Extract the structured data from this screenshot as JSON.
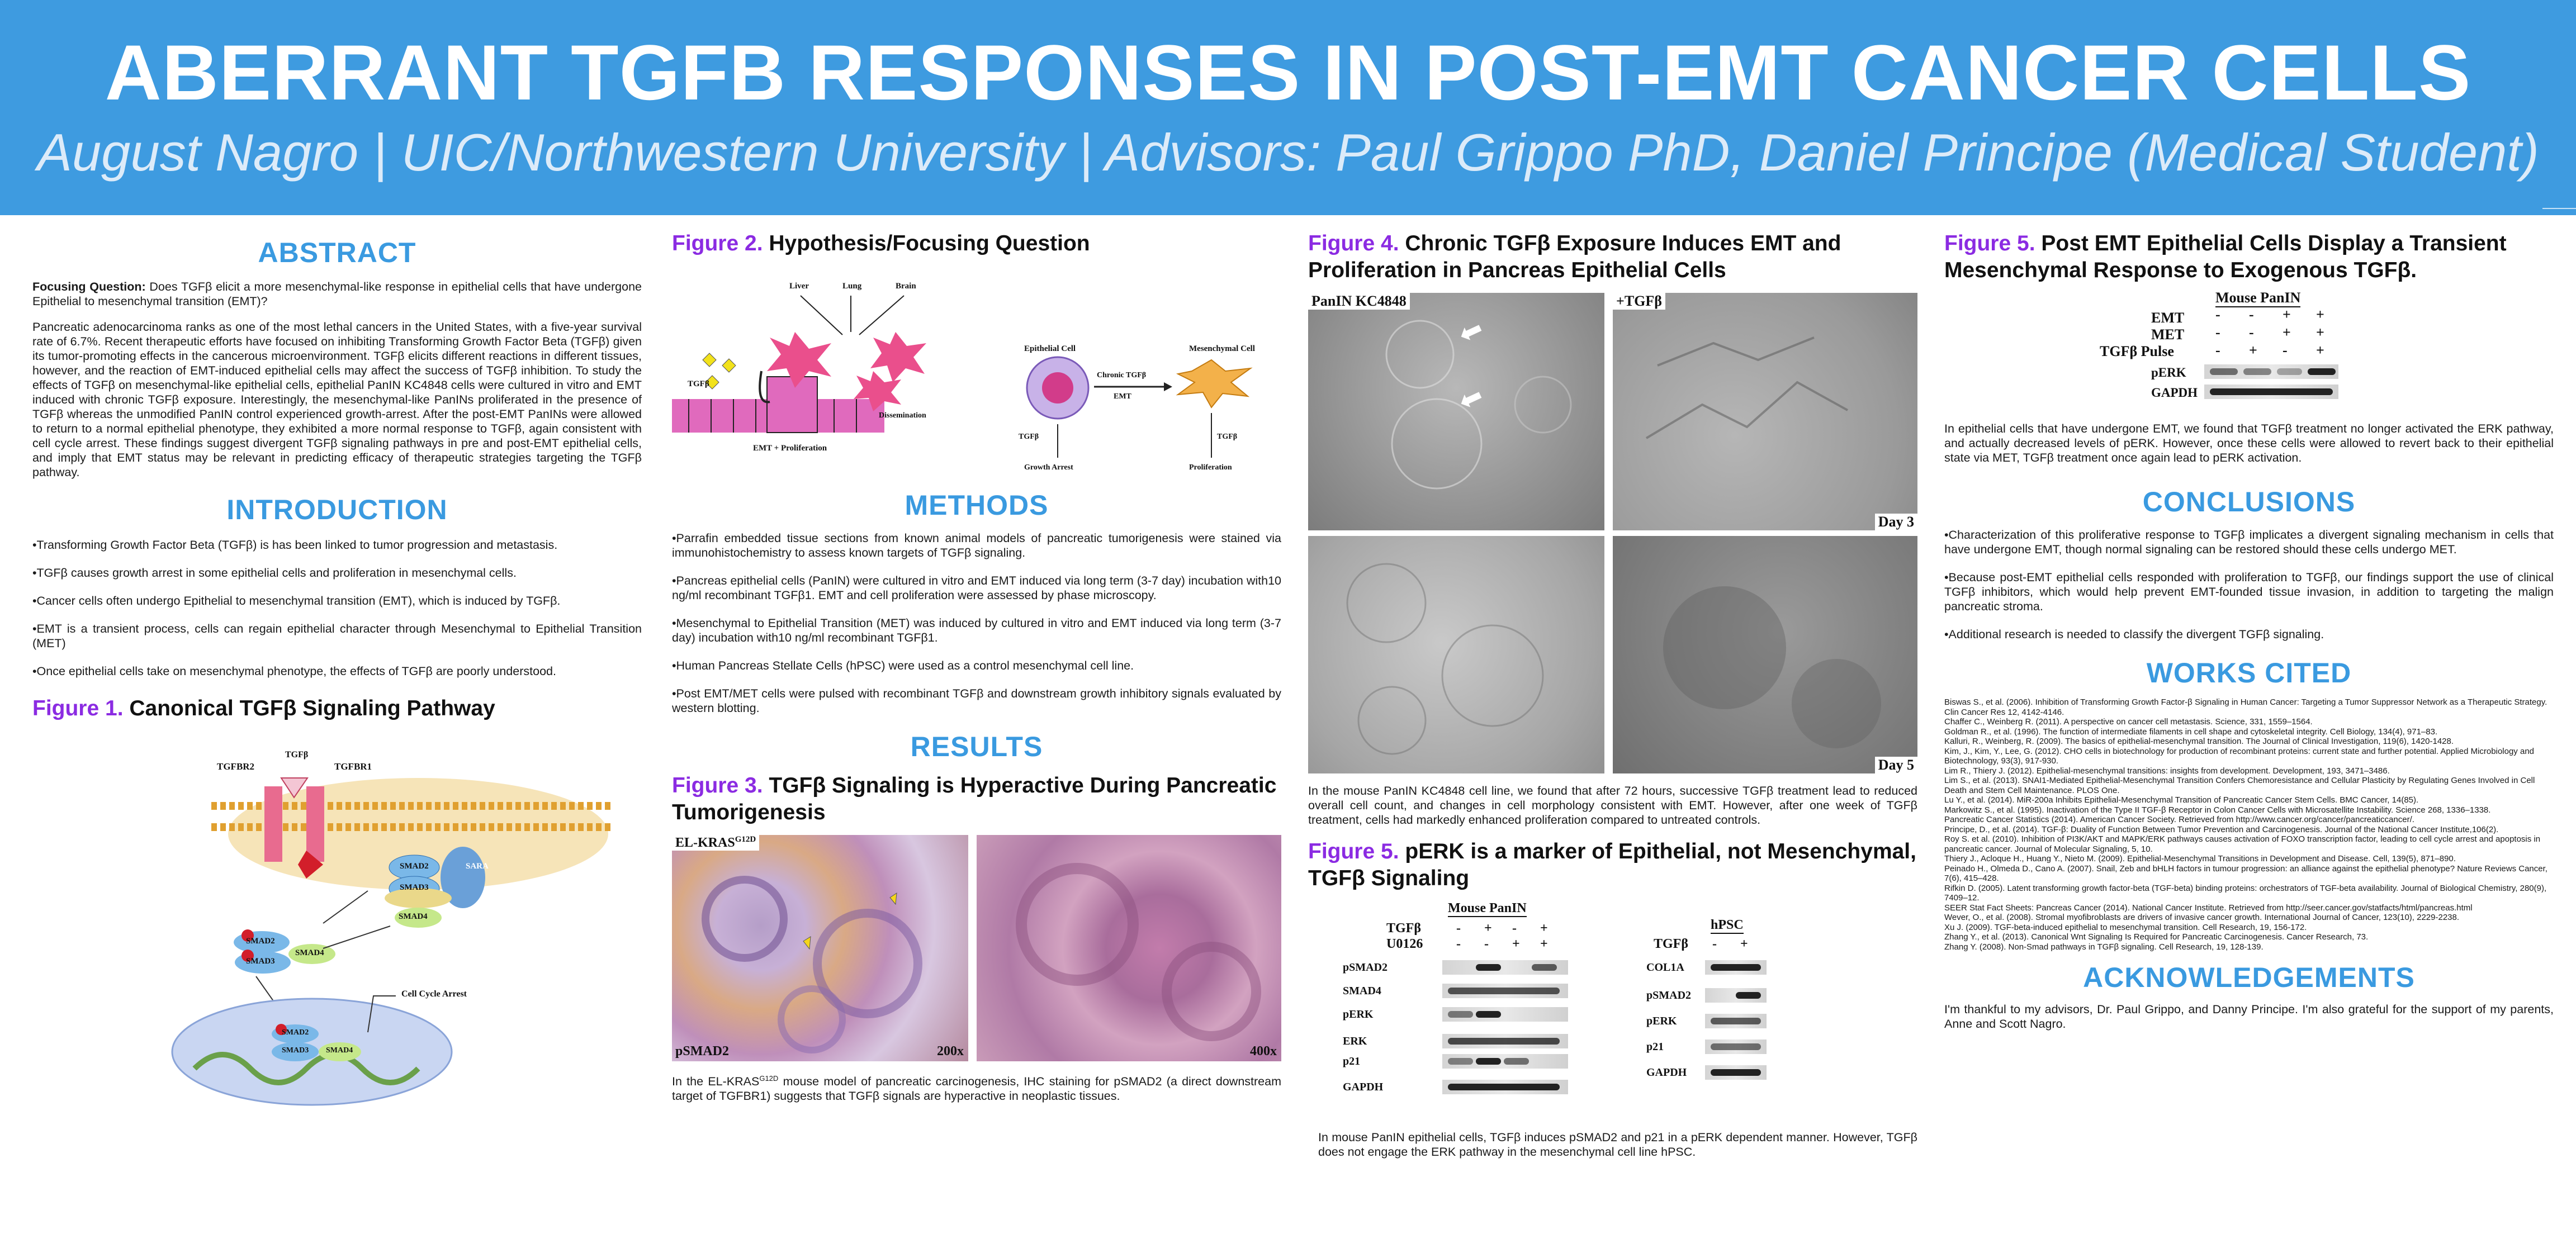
{
  "header": {
    "title": "ABERRANT TGFB RESPONSES IN POST-EMT CANCER CELLS",
    "subtitle": "August Nagro | UIC/Northwestern University | Advisors: Paul Grippo PhD, Daniel Principe (Medical Student)"
  },
  "colors": {
    "banner": "#3e9be0",
    "heading": "#3a9ae0",
    "figure_label": "#8b2be2"
  },
  "abstract": {
    "heading": "ABSTRACT",
    "focus_label": "Focusing Question:",
    "focus_text": " Does TGFβ elicit a more mesenchymal-like response in epithelial cells that have undergone Epithelial to mesenchymal transition (EMT)?",
    "body": "Pancreatic adenocarcinoma ranks as one of the most lethal cancers in the United States, with a five-year survival rate of 6.7%. Recent therapeutic efforts have focused on inhibiting Transforming Growth Factor Beta (TGFβ) given its tumor-promoting effects in the cancerous microenvironment. TGFβ elicits different reactions in different tissues, however, and the reaction of EMT-induced epithelial cells may affect the success of TGFβ inhibition. To study the effects of TGFβ on mesenchymal-like epithelial cells, epithelial PanIN KC4848 cells were cultured in vitro and EMT induced with chronic TGFβ exposure. Interestingly, the mesenchymal-like PanINs proliferated in the presence of TGFβ whereas the unmodified PanIN control experienced growth-arrest. After the post-EMT PanINs were allowed to return to a normal epithelial phenotype, they exhibited a more normal response to TGFβ, again consistent with cell cycle arrest. These findings suggest divergent TGFβ signaling pathways in pre and post-EMT epithelial cells, and imply that EMT status may be relevant in predicting efficacy of therapeutic strategies targeting the TGFβ pathway."
  },
  "introduction": {
    "heading": "INTRODUCTION",
    "bullets": [
      "•Transforming Growth Factor Beta (TGFβ) is has been linked to tumor progression and metastasis.",
      "•TGFβ causes growth arrest in some epithelial cells and proliferation in mesenchymal cells.",
      "•Cancer cells often undergo Epithelial to mesenchymal transition (EMT), which is induced by TGFβ.",
      "•EMT is a transient process, cells can regain epithelial character through Mesenchymal to Epithelial Transition (MET)",
      "•Once epithelial cells take on mesenchymal phenotype, the effects of TGFβ are poorly understood."
    ]
  },
  "figure1": {
    "label": "Figure 1.",
    "title": " Canonical TGFβ Signaling Pathway",
    "labels": {
      "tgfbr2": "TGFBR2",
      "tgfbr1": "TGFBR1",
      "tgfb": "TGFβ",
      "sara": "SARA",
      "smad2": "SMAD2",
      "smad3": "SMAD3",
      "smad4": "SMAD4",
      "arrest": "Cell Cycle Arrest"
    }
  },
  "figure2": {
    "label": "Figure 2.",
    "title": " Hypothesis/Focusing Question",
    "labels": {
      "liver": "Liver",
      "lung": "Lung",
      "brain": "Brain",
      "tgfb": "TGFβ",
      "dissemination": "Dissemination",
      "emt_prolif": "EMT + Proliferation",
      "epithelial": "Epithelial Cell",
      "mesenchymal": "Mesenchymal Cell",
      "chronic": "Chronic TGFβ",
      "emt": "EMT",
      "growth_arrest": "Growth Arrest",
      "proliferation": "Proliferation"
    }
  },
  "methods": {
    "heading": "METHODS",
    "bullets": [
      "•Parrafin embedded tissue sections from known animal models of pancreatic tumorigenesis were stained via immunohistochemistry to assess known targets of TGFβ signaling.",
      "•Pancreas epithelial cells (PanIN) were cultured in vitro and EMT induced via long term (3-7 day) incubation with10 ng/ml recombinant TGFβ1. EMT and cell proliferation were assessed by phase microscopy.",
      "•Mesenchymal to Epithelial Transition (MET) was induced by cultured in vitro and EMT induced via long term (3-7 day) incubation with10 ng/ml recombinant TGFβ1.",
      "•Human Pancreas Stellate Cells (hPSC) were used as a control mesenchymal cell line.",
      "•Post EMT/MET cells were pulsed with recombinant TGFβ and downstream growth inhibitory signals evaluated by western blotting."
    ]
  },
  "results": {
    "heading": "RESULTS"
  },
  "figure3": {
    "label": "Figure 3.",
    "title": " TGFβ Signaling is Hyperactive During Pancreatic Tumorigenesis",
    "model_label": "EL-KRAS",
    "model_sup": "G12D",
    "stain_label": "pSMAD2",
    "mag_left": "200x",
    "mag_right": "400x",
    "caption_pre": "In the EL-KRAS",
    "caption_sup": "G12D",
    "caption_post": " mouse model of pancreatic carcinogenesis, IHC staining for pSMAD2 (a direct downstream target of TGFBR1) suggests that TGFβ signals are hyperactive in neoplastic tissues."
  },
  "figure4": {
    "label": "Figure 4.",
    "title": " Chronic TGFβ Exposure Induces EMT and Proliferation in Pancreas Epithelial Cells",
    "panel_left": "PanIN KC4848",
    "panel_right": "+TGFβ",
    "day3": "Day 3",
    "day5": "Day 5",
    "caption": "In the mouse PanIN KC4848 cell line, we found that after 72 hours, successive TGFβ treatment lead to reduced overall cell count, and changes in cell morphology consistent with EMT. However, after one week of TGFβ treatment, cells had markedly enhanced proliferation compared to untreated controls."
  },
  "figure5a": {
    "label": "Figure 5.",
    "title": " pERK is a marker of Epithelial, not Mesenchymal, TGFβ Signaling",
    "mouse_header": "Mouse PanIN",
    "hpsc_header": "hPSC",
    "treat_tgfb": "TGFβ",
    "treat_u0126": "U0126",
    "tgfb_signs": [
      "-",
      "+",
      "-",
      "+"
    ],
    "u0126_signs": [
      "-",
      "-",
      "+",
      "+"
    ],
    "hpsc_tgfb_signs": [
      "-",
      "+"
    ],
    "mouse_rows": [
      "pSMAD2",
      "SMAD4",
      "pERK",
      "ERK",
      "p21",
      "GAPDH"
    ],
    "hpsc_rows": [
      "COL1A",
      "pSMAD2",
      "pERK",
      "p21",
      "GAPDH"
    ],
    "caption": "In mouse PanIN epithelial cells, TGFβ induces pSMAD2 and p21 in a pERK  dependent manner. However, TGFβ does not engage the ERK pathway in the mesenchymal cell line hPSC."
  },
  "figure5b": {
    "label": "Figure 5.",
    "title": " Post EMT Epithelial Cells Display a Transient Mesenchymal Response to Exogenous TGFβ.",
    "header": "Mouse PanIN",
    "treatments": [
      {
        "name": "EMT",
        "signs": [
          "-",
          "-",
          "+",
          "+"
        ]
      },
      {
        "name": "MET",
        "signs": [
          "-",
          "-",
          "+",
          "+"
        ]
      },
      {
        "name": "TGFβ Pulse",
        "signs": [
          "-",
          "+",
          "-",
          "+"
        ]
      }
    ],
    "rows": [
      "pERK",
      "GAPDH"
    ],
    "caption": "In epithelial cells that have undergone EMT, we found that TGFβ treatment no longer activated the ERK pathway, and actually decreased levels of pERK. However, once these cells were allowed to revert back to their epithelial state via MET, TGFβ treatment once again lead to pERK activation."
  },
  "conclusions": {
    "heading": "CONCLUSIONS",
    "bullets": [
      "•Characterization of this proliferative response to TGFβ implicates a divergent signaling mechanism in cells that have undergone EMT, though normal signaling can be restored should these cells undergo MET.",
      "•Because post-EMT epithelial cells responded with proliferation to TGFβ, our findings support the use of clinical TGFβ inhibitors, which would help prevent EMT-founded tissue invasion, in addition to targeting the malign pancreatic stroma.",
      "•Additional research is needed to classify the divergent TGFβ signaling."
    ]
  },
  "works_cited": {
    "heading": "WORKS CITED",
    "refs": [
      "Biswas S., et al. (2006). Inhibition of Transforming Growth Factor-β Signaling in Human Cancer: Targeting a Tumor Suppressor Network as a Therapeutic Strategy. Clin Cancer Res 12, 4142-4146.",
      "Chaffer C., Weinberg R. (2011). A perspective on cancer cell metastasis. Science, 331, 1559–1564.",
      "Goldman R., et al. (1996). The function of intermediate filaments in cell shape and cytoskeletal integrity. Cell Biology, 134(4), 971–83.",
      "Kalluri, R., Weinberg, R. (2009). The basics of epithelial-mesenchymal transition. The Journal of Clinical Investigation, 119(6), 1420-1428.",
      "Kim, J., Kim, Y., Lee, G. (2012). CHO cells in biotechnology for production of recombinant proteins: current state and further potential. Applied Microbiology and Biotechnology, 93(3), 917-930.",
      "Lim R., Thiery J. (2012). Epithelial-mesenchymal transitions: insights from development. Development, 193, 3471–3486.",
      "Lim S., et al. (2013). SNAI1-Mediated Epithelial-Mesenchymal Transition Confers Chemoresistance and Cellular Plasticity by Regulating Genes Involved in Cell Death and Stem Cell Maintenance. PLOS One.",
      "Lu Y., et al. (2014). MiR-200a Inhibits Epithelial-Mesenchymal Transition of Pancreatic Cancer Stem Cells. BMC Cancer, 14(85).",
      "Markowitz S., et al. (1995). Inactivation of the Type II TGF-β Receptor in Colon Cancer Cells with Microsatellite Instability. Science 268, 1336–1338.",
      "Pancreatic Cancer Statistics (2014). American Cancer Society. Retrieved from http://www.cancer.org/cancer/pancreaticcancer/.",
      "Principe, D., et al. (2014). TGF-β: Duality of Function Between Tumor Prevention and Carcinogenesis. Journal of the National Cancer Institute,106(2).",
      "Roy S. et al. (2010). Inhibition of PI3K/AKT and MAPK/ERK pathways causes activation of FOXO transcription factor, leading to cell cycle arrest and apoptosis in pancreatic cancer. Journal of Molecular Signaling, 5, 10.",
      "Thiery J., Acloque H., Huang Y., Nieto M. (2009). Epithelial-Mesenchymal Transitions in Development and Disease. Cell, 139(5), 871–890.",
      "Peinado H., Olmeda D., Cano A. (2007). Snail, Zeb and bHLH factors in tumour progression: an alliance against the epithelial phenotype? Nature Reviews Cancer, 7(6), 415–428.",
      "Rifkin D. (2005). Latent transforming growth factor-beta (TGF-beta) binding proteins: orchestrators of TGF-beta availability. Journal of Biological Chemistry, 280(9), 7409–12.",
      "SEER Stat Fact Sheets: Pancreas Cancer (2014). National Cancer Institute. Retrieved from http://seer.cancer.gov/statfacts/html/pancreas.html",
      "Wever, O., et al. (2008). Stromal myofibroblasts are drivers of invasive cancer growth. International Journal of Cancer, 123(10), 2229-2238.",
      "Xu J. (2009). TGF-beta-induced epithelial to mesenchymal transition. Cell Research, 19, 156-172.",
      "Zhang Y., et al. (2013). Canonical Wnt Signaling Is Required for Pancreatic Carcinogenesis. Cancer Research, 73.",
      "Zhang Y. (2008). Non-Smad pathways in TGFβ signaling. Cell Research, 19, 128-139."
    ]
  },
  "acknowledgements": {
    "heading": "ACKNOWLEDGEMENTS",
    "text": "I'm thankful to my advisors, Dr. Paul Grippo, and Danny Principe. I'm also grateful for the support of my parents, Anne and Scott Nagro."
  }
}
